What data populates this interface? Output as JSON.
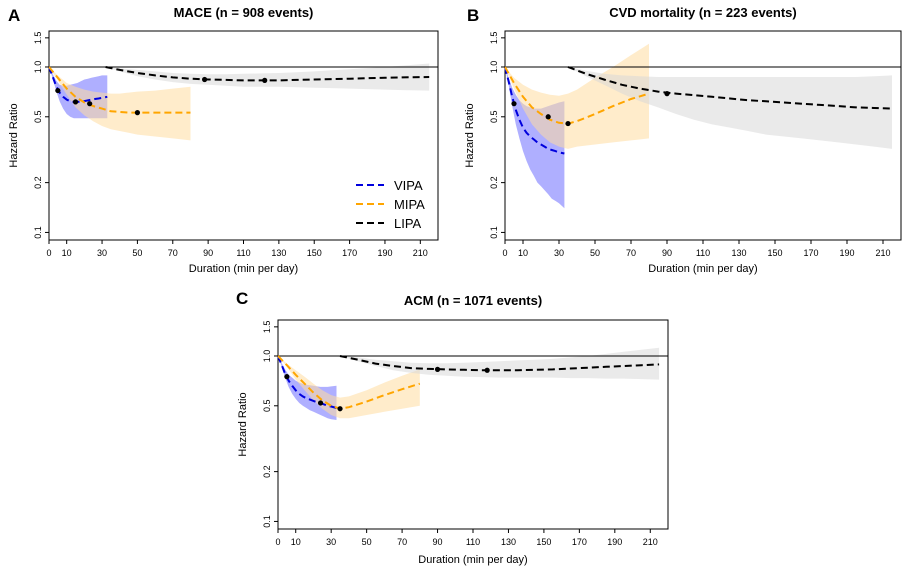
{
  "chart_data": [
    {
      "id": "A",
      "panel_label": "A",
      "type": "line",
      "title": "MACE (n = 908 events)",
      "xlabel": "Duration (min per day)",
      "ylabel": "Hazard Ratio",
      "xlim": [
        0,
        220
      ],
      "ylim": [
        0.09,
        1.65
      ],
      "log_y": true,
      "x_ticks": [
        "0",
        "10",
        "30",
        "50",
        "70",
        "90",
        "110",
        "130",
        "150",
        "170",
        "190",
        "210"
      ],
      "y_ticks": [
        "0.1",
        "0.2",
        "0.5",
        "1.0",
        "1.5"
      ],
      "reference_line": 1.0,
      "legend": {
        "placement": "right-middle",
        "entries": [
          {
            "label": "VIPA",
            "color": "#0000dd"
          },
          {
            "label": "MIPA",
            "color": "#ffa500"
          },
          {
            "label": "LIPA",
            "color": "#000000"
          }
        ]
      },
      "series": [
        {
          "name": "VIPA",
          "color": "#0000dd",
          "band_color": "#6d6dff",
          "x": [
            0,
            2,
            4,
            6,
            8,
            10,
            12,
            14,
            16,
            18,
            20,
            22,
            24,
            26,
            28,
            30,
            33
          ],
          "y": [
            1.0,
            0.88,
            0.77,
            0.7,
            0.66,
            0.635,
            0.62,
            0.615,
            0.615,
            0.618,
            0.622,
            0.628,
            0.634,
            0.64,
            0.645,
            0.65,
            0.66
          ],
          "lower": [
            1.0,
            0.86,
            0.72,
            0.62,
            0.56,
            0.52,
            0.5,
            0.49,
            0.49,
            0.49,
            0.49,
            0.49,
            0.49,
            0.49,
            0.49,
            0.49,
            0.49
          ],
          "upper": [
            1.0,
            0.91,
            0.83,
            0.78,
            0.77,
            0.77,
            0.78,
            0.79,
            0.8,
            0.82,
            0.84,
            0.85,
            0.86,
            0.87,
            0.88,
            0.89,
            0.89
          ],
          "markers": [
            {
              "x": 5,
              "y": 0.72
            },
            {
              "x": 15,
              "y": 0.615
            }
          ]
        },
        {
          "name": "MIPA",
          "color": "#ffa500",
          "band_color": "#ffdca0",
          "x": [
            0,
            5,
            10,
            15,
            20,
            25,
            30,
            35,
            40,
            45,
            50,
            60,
            70,
            80
          ],
          "y": [
            1.0,
            0.86,
            0.74,
            0.66,
            0.61,
            0.58,
            0.56,
            0.54,
            0.535,
            0.53,
            0.53,
            0.53,
            0.53,
            0.53
          ],
          "lower": [
            1.0,
            0.83,
            0.68,
            0.57,
            0.51,
            0.47,
            0.44,
            0.42,
            0.41,
            0.4,
            0.39,
            0.38,
            0.37,
            0.36
          ],
          "upper": [
            1.0,
            0.89,
            0.8,
            0.76,
            0.73,
            0.71,
            0.7,
            0.69,
            0.69,
            0.7,
            0.71,
            0.72,
            0.74,
            0.76
          ],
          "markers": [
            {
              "x": 23,
              "y": 0.6
            },
            {
              "x": 50,
              "y": 0.53
            }
          ]
        },
        {
          "name": "LIPA",
          "color": "#000000",
          "band_color": "#d9d9d9",
          "x": [
            32,
            40,
            50,
            60,
            70,
            80,
            90,
            100,
            110,
            120,
            130,
            140,
            150,
            160,
            170,
            180,
            190,
            200,
            215
          ],
          "y": [
            1.0,
            0.96,
            0.92,
            0.89,
            0.865,
            0.85,
            0.84,
            0.835,
            0.83,
            0.83,
            0.83,
            0.835,
            0.84,
            0.845,
            0.85,
            0.855,
            0.86,
            0.865,
            0.87
          ],
          "lower": [
            1.0,
            0.94,
            0.88,
            0.84,
            0.81,
            0.79,
            0.78,
            0.77,
            0.76,
            0.76,
            0.76,
            0.755,
            0.75,
            0.745,
            0.74,
            0.735,
            0.73,
            0.725,
            0.72
          ],
          "upper": [
            1.0,
            0.98,
            0.96,
            0.94,
            0.92,
            0.91,
            0.905,
            0.905,
            0.91,
            0.915,
            0.92,
            0.93,
            0.94,
            0.955,
            0.97,
            0.985,
            1.0,
            1.02,
            1.05
          ],
          "markers": [
            {
              "x": 88,
              "y": 0.84
            },
            {
              "x": 122,
              "y": 0.83
            }
          ]
        }
      ]
    },
    {
      "id": "B",
      "panel_label": "B",
      "type": "line",
      "title": "CVD mortality (n = 223 events)",
      "xlabel": "Duration (min per day)",
      "ylabel": "Hazard Ratio",
      "xlim": [
        0,
        220
      ],
      "ylim": [
        0.09,
        1.65
      ],
      "log_y": true,
      "x_ticks": [
        "0",
        "10",
        "30",
        "50",
        "70",
        "90",
        "110",
        "130",
        "150",
        "170",
        "190",
        "210"
      ],
      "y_ticks": [
        "0.1",
        "0.2",
        "0.5",
        "1.0",
        "1.5"
      ],
      "reference_line": 1.0,
      "series": [
        {
          "name": "VIPA",
          "color": "#0000dd",
          "band_color": "#6d6dff",
          "x": [
            0,
            2,
            4,
            6,
            8,
            10,
            12,
            14,
            16,
            18,
            20,
            22,
            24,
            26,
            28,
            30,
            33
          ],
          "y": [
            1.0,
            0.82,
            0.66,
            0.55,
            0.48,
            0.43,
            0.4,
            0.38,
            0.365,
            0.35,
            0.34,
            0.33,
            0.32,
            0.315,
            0.31,
            0.305,
            0.3
          ],
          "lower": [
            1.0,
            0.78,
            0.58,
            0.45,
            0.37,
            0.31,
            0.27,
            0.24,
            0.22,
            0.2,
            0.19,
            0.18,
            0.17,
            0.16,
            0.155,
            0.15,
            0.14
          ],
          "upper": [
            1.0,
            0.86,
            0.75,
            0.68,
            0.63,
            0.6,
            0.58,
            0.57,
            0.56,
            0.56,
            0.56,
            0.57,
            0.58,
            0.59,
            0.6,
            0.61,
            0.62
          ],
          "markers": [
            {
              "x": 5,
              "y": 0.6
            }
          ]
        },
        {
          "name": "MIPA",
          "color": "#ffa500",
          "band_color": "#ffdca0",
          "x": [
            0,
            5,
            10,
            15,
            20,
            25,
            30,
            35,
            40,
            50,
            60,
            70,
            80
          ],
          "y": [
            1.0,
            0.8,
            0.66,
            0.57,
            0.52,
            0.48,
            0.46,
            0.455,
            0.47,
            0.52,
            0.58,
            0.64,
            0.69
          ],
          "lower": [
            1.0,
            0.74,
            0.56,
            0.45,
            0.39,
            0.35,
            0.33,
            0.32,
            0.33,
            0.34,
            0.35,
            0.36,
            0.37
          ],
          "upper": [
            1.0,
            0.86,
            0.78,
            0.73,
            0.7,
            0.68,
            0.67,
            0.69,
            0.73,
            0.86,
            1.0,
            1.18,
            1.38
          ],
          "markers": [
            {
              "x": 24,
              "y": 0.5
            },
            {
              "x": 35,
              "y": 0.455
            }
          ]
        },
        {
          "name": "LIPA",
          "color": "#000000",
          "band_color": "#d9d9d9",
          "x": [
            35,
            45,
            55,
            65,
            75,
            85,
            95,
            105,
            115,
            125,
            135,
            145,
            155,
            165,
            175,
            185,
            195,
            205,
            215
          ],
          "y": [
            1.0,
            0.91,
            0.84,
            0.78,
            0.74,
            0.71,
            0.69,
            0.675,
            0.66,
            0.645,
            0.63,
            0.62,
            0.61,
            0.6,
            0.59,
            0.58,
            0.57,
            0.565,
            0.56
          ],
          "lower": [
            1.0,
            0.88,
            0.78,
            0.69,
            0.62,
            0.57,
            0.52,
            0.48,
            0.45,
            0.43,
            0.41,
            0.39,
            0.38,
            0.37,
            0.36,
            0.35,
            0.34,
            0.33,
            0.32
          ],
          "upper": [
            1.0,
            0.95,
            0.91,
            0.89,
            0.88,
            0.87,
            0.87,
            0.87,
            0.87,
            0.87,
            0.87,
            0.87,
            0.87,
            0.87,
            0.87,
            0.87,
            0.87,
            0.88,
            0.89
          ],
          "markers": [
            {
              "x": 90,
              "y": 0.69
            }
          ]
        }
      ]
    },
    {
      "id": "C",
      "panel_label": "C",
      "type": "line",
      "title": "ACM (n = 1071 events)",
      "xlabel": "Duration (min per day)",
      "ylabel": "Hazard Ratio",
      "xlim": [
        0,
        220
      ],
      "ylim": [
        0.09,
        1.65
      ],
      "log_y": true,
      "x_ticks": [
        "0",
        "10",
        "30",
        "50",
        "70",
        "90",
        "110",
        "130",
        "150",
        "170",
        "190",
        "210"
      ],
      "y_ticks": [
        "0.1",
        "0.2",
        "0.5",
        "1.0",
        "1.5"
      ],
      "reference_line": 1.0,
      "series": [
        {
          "name": "VIPA",
          "color": "#0000dd",
          "band_color": "#6d6dff",
          "x": [
            0,
            2,
            4,
            6,
            8,
            10,
            12,
            14,
            16,
            18,
            20,
            22,
            24,
            26,
            28,
            30,
            33
          ],
          "y": [
            1.0,
            0.89,
            0.78,
            0.71,
            0.66,
            0.62,
            0.59,
            0.57,
            0.555,
            0.545,
            0.535,
            0.525,
            0.52,
            0.51,
            0.5,
            0.495,
            0.485
          ],
          "lower": [
            1.0,
            0.87,
            0.74,
            0.65,
            0.59,
            0.55,
            0.52,
            0.5,
            0.485,
            0.47,
            0.46,
            0.45,
            0.44,
            0.43,
            0.42,
            0.415,
            0.41
          ],
          "upper": [
            1.0,
            0.91,
            0.83,
            0.77,
            0.74,
            0.71,
            0.69,
            0.68,
            0.67,
            0.665,
            0.66,
            0.655,
            0.65,
            0.65,
            0.65,
            0.655,
            0.66
          ],
          "markers": [
            {
              "x": 5,
              "y": 0.75
            },
            {
              "x": 24,
              "y": 0.52
            }
          ]
        },
        {
          "name": "MIPA",
          "color": "#ffa500",
          "band_color": "#ffdca0",
          "x": [
            0,
            5,
            10,
            15,
            20,
            25,
            30,
            35,
            40,
            50,
            60,
            70,
            80
          ],
          "y": [
            1.0,
            0.88,
            0.77,
            0.68,
            0.6,
            0.54,
            0.5,
            0.48,
            0.49,
            0.53,
            0.58,
            0.63,
            0.68
          ],
          "lower": [
            1.0,
            0.86,
            0.72,
            0.62,
            0.54,
            0.48,
            0.44,
            0.42,
            0.42,
            0.44,
            0.46,
            0.48,
            0.5
          ],
          "upper": [
            1.0,
            0.9,
            0.82,
            0.75,
            0.68,
            0.62,
            0.58,
            0.56,
            0.57,
            0.62,
            0.69,
            0.76,
            0.83
          ],
          "markers": [
            {
              "x": 35,
              "y": 0.48
            }
          ]
        },
        {
          "name": "LIPA",
          "color": "#000000",
          "band_color": "#d9d9d9",
          "x": [
            35,
            45,
            55,
            65,
            75,
            85,
            95,
            105,
            115,
            125,
            135,
            145,
            155,
            165,
            175,
            185,
            195,
            205,
            215
          ],
          "y": [
            1.0,
            0.95,
            0.9,
            0.87,
            0.845,
            0.835,
            0.83,
            0.825,
            0.82,
            0.82,
            0.82,
            0.825,
            0.83,
            0.84,
            0.85,
            0.86,
            0.87,
            0.88,
            0.89
          ],
          "lower": [
            1.0,
            0.93,
            0.87,
            0.82,
            0.79,
            0.77,
            0.76,
            0.75,
            0.745,
            0.74,
            0.74,
            0.74,
            0.74,
            0.735,
            0.735,
            0.73,
            0.73,
            0.725,
            0.72
          ],
          "upper": [
            1.0,
            0.98,
            0.95,
            0.93,
            0.91,
            0.905,
            0.905,
            0.91,
            0.92,
            0.93,
            0.94,
            0.95,
            0.96,
            0.98,
            1.0,
            1.03,
            1.06,
            1.09,
            1.12
          ],
          "markers": [
            {
              "x": 90,
              "y": 0.83
            },
            {
              "x": 118,
              "y": 0.82
            }
          ]
        }
      ]
    }
  ]
}
